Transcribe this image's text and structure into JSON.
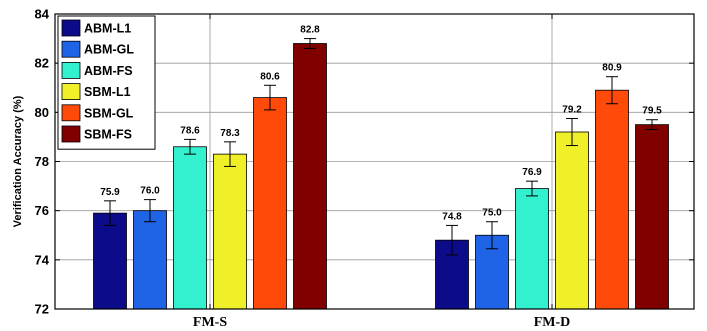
{
  "chart_data": {
    "type": "bar",
    "title": "",
    "xlabel": "",
    "ylabel": "Verification Accuracy (%)",
    "ylim": [
      72,
      84
    ],
    "yticks": [
      72,
      74,
      76,
      78,
      80,
      82,
      84
    ],
    "grid": true,
    "legend_position": "top-left",
    "categories": [
      "FM-S",
      "FM-D"
    ],
    "series": [
      {
        "name": "ABM-L1",
        "color": "#0c0c8a",
        "values": [
          75.9,
          74.8
        ],
        "errors": [
          0.5,
          0.6
        ]
      },
      {
        "name": "ABM-GL",
        "color": "#1f64e6",
        "values": [
          76.0,
          75.0
        ],
        "errors": [
          0.45,
          0.55
        ]
      },
      {
        "name": "ABM-FS",
        "color": "#33f0cf",
        "values": [
          78.6,
          76.9
        ],
        "errors": [
          0.3,
          0.3
        ]
      },
      {
        "name": "SBM-L1",
        "color": "#f0f028",
        "values": [
          78.3,
          79.2
        ],
        "errors": [
          0.5,
          0.55
        ]
      },
      {
        "name": "SBM-GL",
        "color": "#ff4a0a",
        "values": [
          80.6,
          80.9
        ],
        "errors": [
          0.5,
          0.55
        ]
      },
      {
        "name": "SBM-FS",
        "color": "#800000",
        "values": [
          82.8,
          79.5
        ],
        "errors": [
          0.2,
          0.2
        ]
      }
    ],
    "value_labels": [
      [
        "75.9",
        "74.8"
      ],
      [
        "76.0",
        "75.0"
      ],
      [
        "78.6",
        "76.9"
      ],
      [
        "78.3",
        "79.2"
      ],
      [
        "80.6",
        "80.9"
      ],
      [
        "82.8",
        "79.5"
      ]
    ],
    "ytick_labels": [
      "72",
      "74",
      "76",
      "78",
      "80",
      "82",
      "84"
    ],
    "category_labels": [
      "FM-S",
      "FM-D"
    ]
  }
}
